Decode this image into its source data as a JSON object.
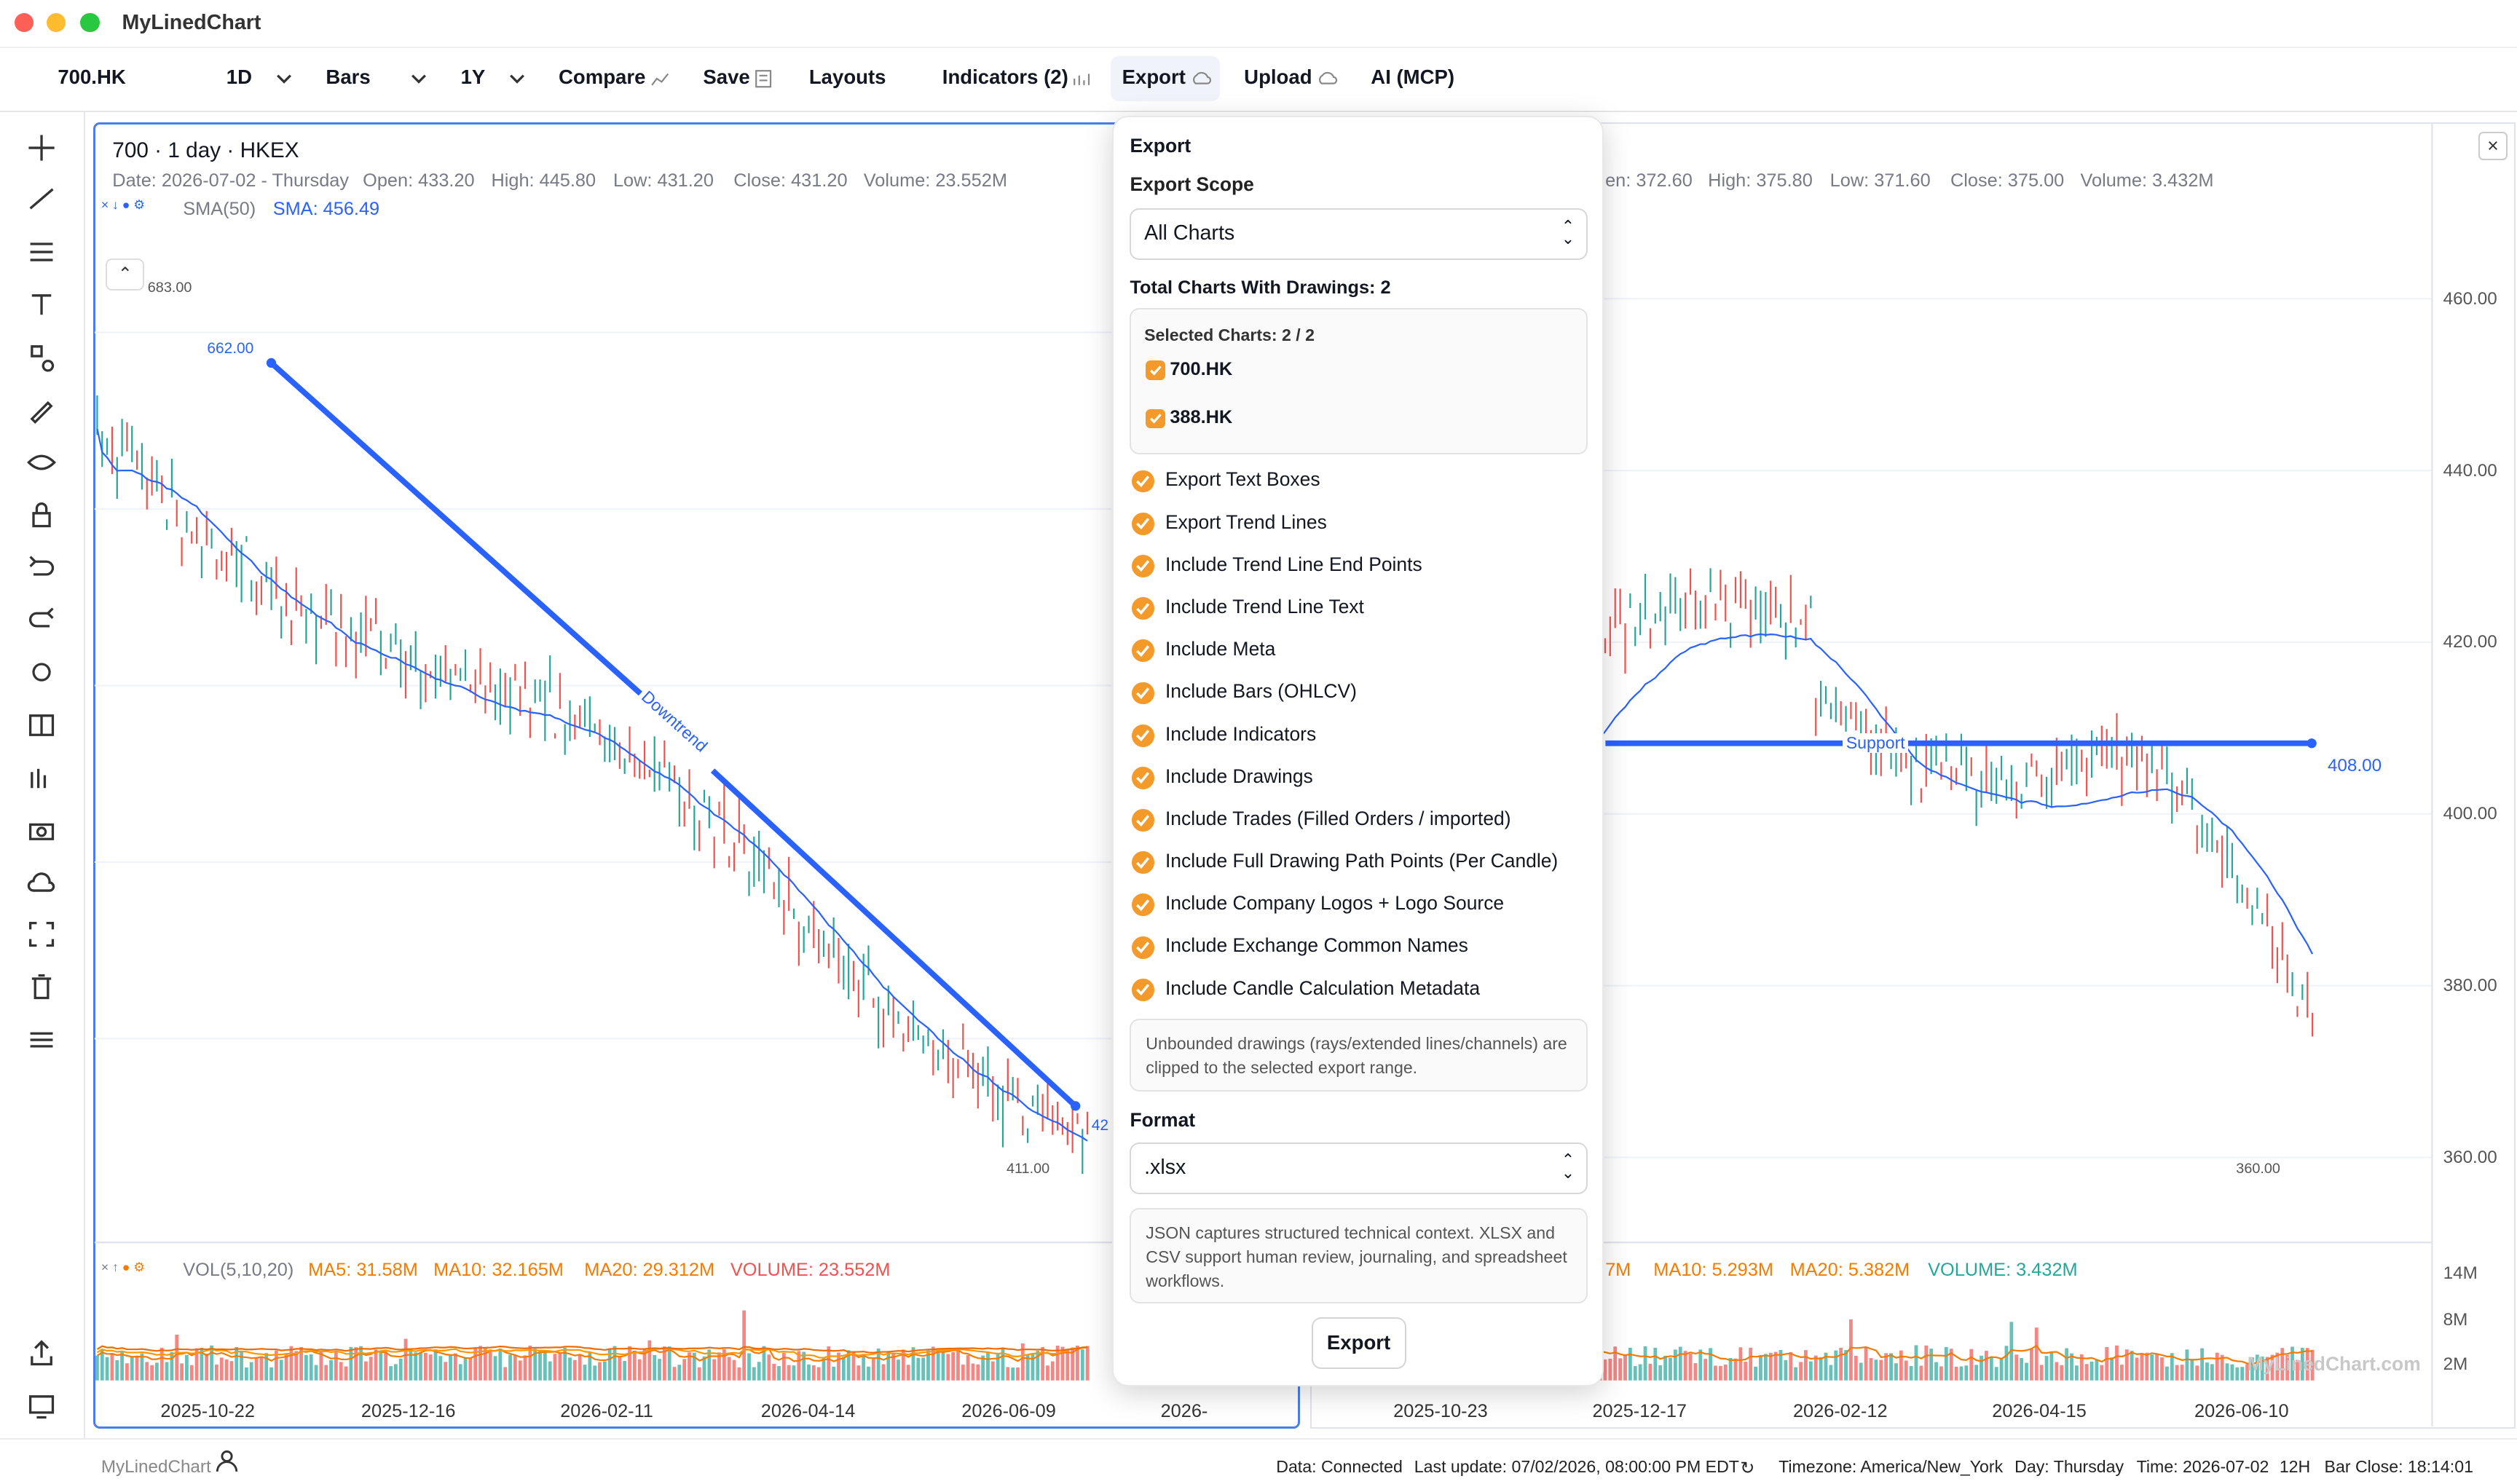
{
  "window": {
    "title": "MyLinedChart"
  },
  "toolbar": {
    "symbol": "700.HK",
    "interval": "1D",
    "chart_type": "Bars",
    "range": "1Y",
    "compare": "Compare",
    "save": "Save",
    "layouts": "Layouts",
    "indicators": "Indicators (2)",
    "export": "Export",
    "upload": "Upload",
    "ai": "AI (MCP)"
  },
  "left_chart": {
    "title": "700 · 1 day · HKEX",
    "ohlc": {
      "date": "Date: 2026-07-02 - Thursday",
      "open": "Open: 433.20",
      "high": "High: 445.80",
      "low": "Low: 431.20",
      "close": "Close: 431.20",
      "volume": "Volume: 23.552M"
    },
    "sma_name": "SMA(50)",
    "sma_value": "SMA: 456.49",
    "high_marker": "683.00",
    "low_marker": "411.00",
    "trendline_start_label": "662.00",
    "trendline_end_label": "42",
    "trendline_text": "Downtrend",
    "volume_legend": {
      "name": "VOL(5,10,20)",
      "ma5": "MA5: 31.58M",
      "ma10": "MA10: 32.165M",
      "ma20": "MA20: 29.312M",
      "volume": "VOLUME: 23.552M"
    },
    "dates": [
      "2025-10-22",
      "2025-12-16",
      "2026-02-11",
      "2026-04-14",
      "2026-06-09",
      "2026-"
    ]
  },
  "right_chart": {
    "ohlc_partial": {
      "open": "en: 372.60",
      "high": "High: 375.80",
      "low": "Low: 371.60",
      "close": "Close: 375.00",
      "volume": "Volume: 3.432M"
    },
    "price_axis": [
      "460.00",
      "440.00",
      "420.00",
      "400.00",
      "380.00",
      "360.00"
    ],
    "volume_axis": [
      "14M",
      "8M",
      "2M"
    ],
    "support_text": "Support",
    "support_price": "408.00",
    "low_marker": "360.00",
    "volume_legend": {
      "ma5": "7M",
      "ma10": "MA10: 5.293M",
      "ma20": "MA20: 5.382M",
      "volume": "VOLUME: 3.432M"
    },
    "dates": [
      "2025-10-23",
      "2025-12-17",
      "2026-02-12",
      "2026-04-15",
      "2026-06-10"
    ],
    "watermark": "MyLinedChart.com"
  },
  "export_popup": {
    "heading": "Export",
    "scope_label": "Export Scope",
    "scope_value": "All Charts",
    "total_label": "Total Charts With Drawings: 2",
    "selected_label": "Selected Charts: 2 / 2",
    "charts": [
      "700.HK",
      "388.HK"
    ],
    "options": [
      "Export Text Boxes",
      "Export Trend Lines",
      "Include Trend Line End Points",
      "Include Trend Line Text",
      "Include Meta",
      "Include Bars (OHLCV)",
      "Include Indicators",
      "Include Drawings",
      "Include Trades (Filled Orders / imported)",
      "Include Full Drawing Path Points (Per Candle)",
      "Include Company Logos + Logo Source",
      "Include Exchange Common Names",
      "Include Candle Calculation Metadata"
    ],
    "unbounded_note": "Unbounded drawings (rays/extended lines/channels) are clipped to the selected export range.",
    "format_label": "Format",
    "format_value": ".xlsx",
    "format_note": "JSON captures structured technical context. XLSX and CSV support human review, journaling, and spreadsheet workflows.",
    "export_button": "Export"
  },
  "status_bar": {
    "brand": "MyLinedChart",
    "data": "Data: Connected",
    "last_update": "Last update: 07/02/2026, 08:00:00 PM EDT",
    "timezone": "Timezone: America/New_York",
    "day": "Day: Thursday",
    "time": "Time: 2026-07-02",
    "hour_mode": "12H",
    "bar_close": "Bar Close: 18:14:01"
  },
  "sidebar_tools": [
    "crosshair-icon",
    "trendline-icon",
    "fib-icon",
    "text-icon",
    "shapes-icon",
    "brush-icon",
    "eye-icon",
    "lock-icon",
    "undo-icon",
    "redo-icon",
    "settings-icon",
    "split-icon",
    "eth-icon",
    "camera-icon",
    "cloud-icon",
    "fullscreen-icon",
    "trash-icon",
    "sliders-icon"
  ],
  "colors": {
    "up": "#26a69a",
    "down": "#ef5350",
    "line": "#2962ff",
    "accent": "#f39a2b",
    "active_border": "#4a7fe8"
  }
}
